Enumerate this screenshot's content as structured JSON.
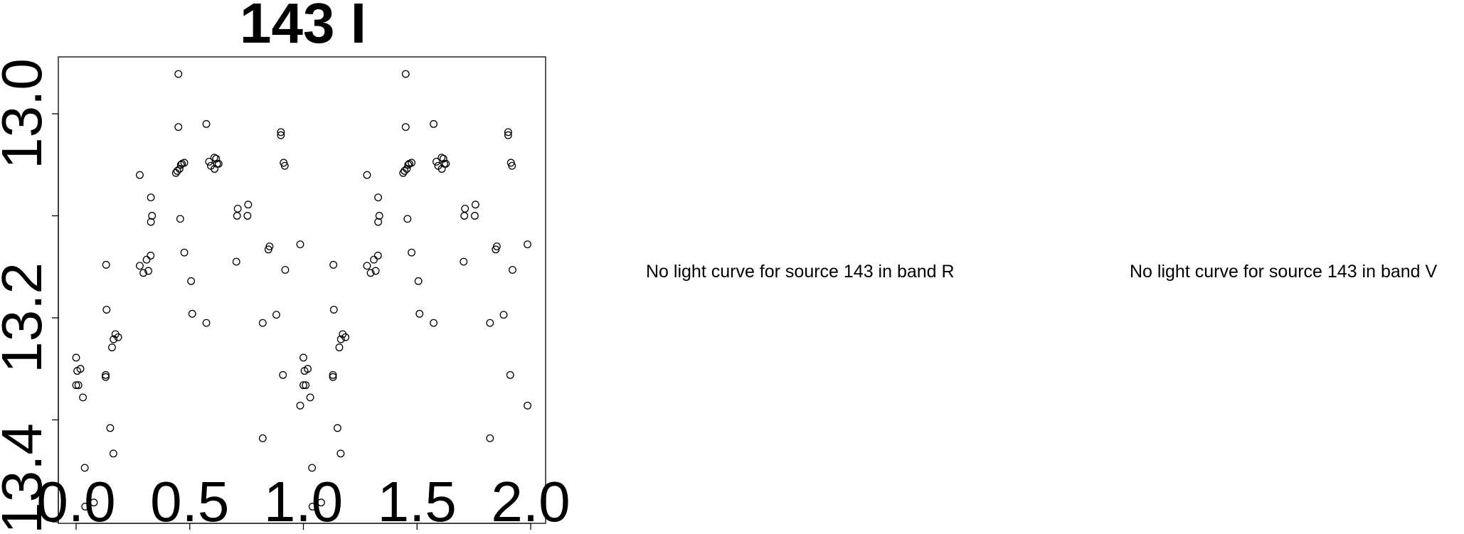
{
  "chart_data": [
    {
      "type": "scatter",
      "title": "143 I",
      "xlabel": "",
      "ylabel": "",
      "xlim": [
        -0.1,
        2.05
      ],
      "ylim": [
        13.0,
        13.4
      ],
      "y_inverted": true,
      "x_ticks": [
        "0.0",
        "0.5",
        "1.0",
        "1.5",
        "2.0"
      ],
      "y_ticks": [
        13.0,
        13.1,
        13.2,
        13.3,
        13.4
      ],
      "y_tick_labels": [
        "13.0",
        "13.2",
        "13.4"
      ],
      "grid": false,
      "marker": "open-circle",
      "phase_repeated_plus_one": true,
      "points": [
        [
          0.0,
          13.239
        ],
        [
          0.005,
          13.252
        ],
        [
          0.019,
          13.25
        ],
        [
          0.0,
          13.266
        ],
        [
          0.01,
          13.266
        ],
        [
          0.03,
          13.278
        ],
        [
          0.038,
          13.347
        ],
        [
          0.04,
          13.385
        ],
        [
          0.078,
          13.381
        ],
        [
          0.132,
          13.148
        ],
        [
          0.134,
          13.192
        ],
        [
          0.13,
          13.256
        ],
        [
          0.13,
          13.258
        ],
        [
          0.158,
          13.229
        ],
        [
          0.165,
          13.221
        ],
        [
          0.173,
          13.216
        ],
        [
          0.185,
          13.219
        ],
        [
          0.15,
          13.308
        ],
        [
          0.164,
          13.333
        ],
        [
          0.28,
          13.06
        ],
        [
          0.329,
          13.082
        ],
        [
          0.334,
          13.1
        ],
        [
          0.329,
          13.106
        ],
        [
          0.28,
          13.149
        ],
        [
          0.296,
          13.156
        ],
        [
          0.31,
          13.143
        ],
        [
          0.328,
          13.139
        ],
        [
          0.318,
          13.154
        ],
        [
          0.45,
          12.961
        ],
        [
          0.45,
          13.013
        ],
        [
          0.439,
          13.058
        ],
        [
          0.445,
          13.056
        ],
        [
          0.455,
          13.054
        ],
        [
          0.461,
          13.05
        ],
        [
          0.466,
          13.049
        ],
        [
          0.476,
          13.048
        ],
        [
          0.458,
          13.103
        ],
        [
          0.476,
          13.136
        ],
        [
          0.506,
          13.164
        ],
        [
          0.511,
          13.196
        ],
        [
          0.573,
          13.01
        ],
        [
          0.573,
          13.205
        ],
        [
          0.585,
          13.047
        ],
        [
          0.593,
          13.051
        ],
        [
          0.608,
          13.043
        ],
        [
          0.616,
          13.044
        ],
        [
          0.609,
          13.054
        ],
        [
          0.627,
          13.049
        ],
        [
          0.62,
          13.049
        ],
        [
          0.711,
          13.093
        ],
        [
          0.708,
          13.1
        ],
        [
          0.757,
          13.089
        ],
        [
          0.754,
          13.1
        ],
        [
          0.705,
          13.145
        ],
        [
          0.851,
          13.13
        ],
        [
          0.846,
          13.133
        ],
        [
          0.821,
          13.205
        ],
        [
          0.821,
          13.318
        ],
        [
          0.881,
          13.197
        ],
        [
          0.901,
          13.018
        ],
        [
          0.901,
          13.021
        ],
        [
          0.913,
          13.048
        ],
        [
          0.918,
          13.051
        ],
        [
          0.92,
          13.153
        ],
        [
          0.91,
          13.256
        ],
        [
          0.986,
          13.128
        ],
        [
          0.986,
          13.286
        ]
      ]
    }
  ],
  "messages": {
    "band_r": "No light curve for source 143 in band R",
    "band_v": "No light curve for source 143 in band V"
  }
}
